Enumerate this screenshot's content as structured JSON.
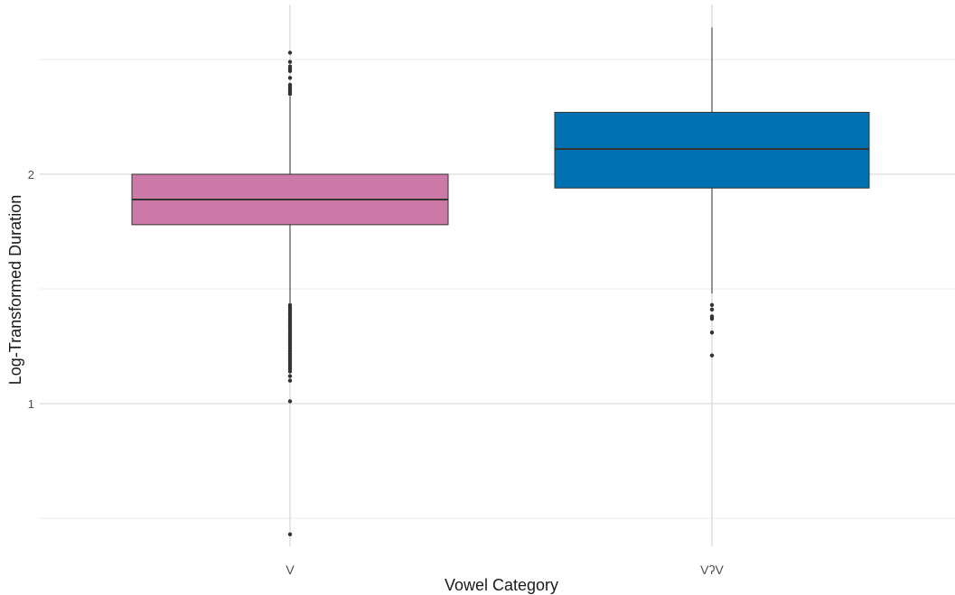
{
  "chart_data": {
    "type": "boxplot",
    "xlabel": "Vowel Category",
    "ylabel": "Log-Transformed Duration",
    "ylim": [
      0.5,
      2.6
    ],
    "y_ticks": [
      1,
      2
    ],
    "y_tick_labels": [
      "1",
      "2"
    ],
    "grid": true,
    "categories": [
      "V",
      "VʔV"
    ],
    "boxes": [
      {
        "category": "V",
        "color": "#CC79A7",
        "q1": 1.78,
        "median": 1.89,
        "q3": 2.0,
        "whisker_low": 1.44,
        "whisker_high": 2.34,
        "outliers": [
          2.53,
          2.49,
          2.47,
          2.46,
          2.45,
          2.42,
          2.39,
          2.38,
          2.37,
          2.36,
          2.35,
          1.43,
          1.42,
          1.41,
          1.4,
          1.39,
          1.38,
          1.37,
          1.36,
          1.35,
          1.34,
          1.33,
          1.32,
          1.31,
          1.3,
          1.29,
          1.28,
          1.27,
          1.26,
          1.25,
          1.24,
          1.23,
          1.22,
          1.21,
          1.2,
          1.19,
          1.18,
          1.17,
          1.16,
          1.15,
          1.14,
          1.12,
          1.1,
          1.01,
          0.43
        ]
      },
      {
        "category": "VʔV",
        "color": "#0072B2",
        "q1": 1.94,
        "median": 2.11,
        "q3": 2.27,
        "whisker_low": 1.48,
        "whisker_high": 2.64,
        "outliers": [
          1.43,
          1.41,
          1.38,
          1.37,
          1.31,
          1.21
        ]
      }
    ]
  }
}
